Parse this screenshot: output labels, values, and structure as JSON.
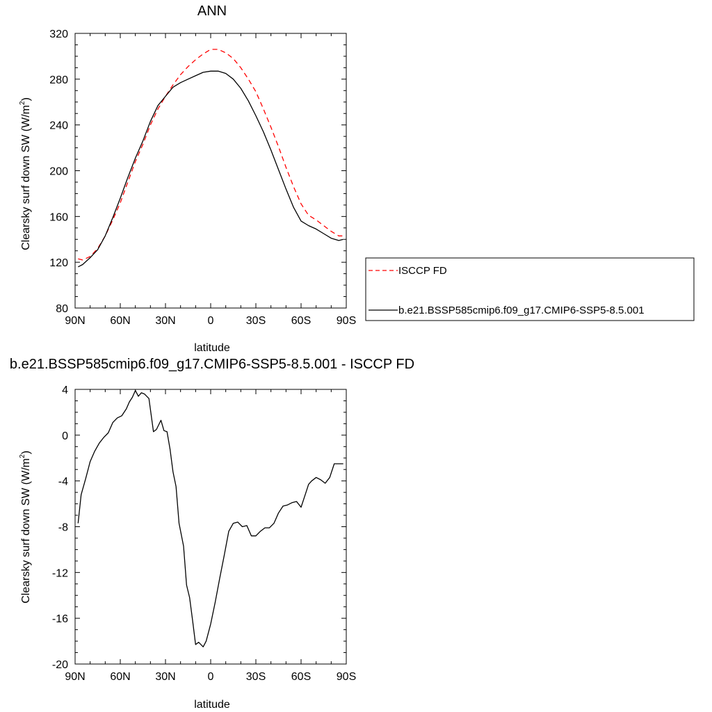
{
  "chart_data": [
    {
      "type": "line",
      "title": "ANN",
      "xlabel": "latitude",
      "ylabel": "Clearsky surf down SW (W/m",
      "ylabel_sup": "2",
      "ylabel_close": ")",
      "xlim": [
        -90,
        90
      ],
      "ylim": [
        80,
        320
      ],
      "x_ticks": [
        -90,
        -60,
        -30,
        0,
        30,
        60,
        90
      ],
      "x_tick_labels": [
        "90N",
        "60N",
        "30N",
        "0",
        "30S",
        "60S",
        "90S"
      ],
      "y_ticks": [
        80,
        120,
        160,
        200,
        240,
        280,
        320
      ],
      "y_tick_labels": [
        "80",
        "120",
        "160",
        "200",
        "240",
        "280",
        "320"
      ],
      "grid": false,
      "legend_position": "right",
      "series": [
        {
          "name": "ISCCP FD",
          "color": "#ff0000",
          "dash": "dashed",
          "x": [
            -88,
            -85,
            -80,
            -75,
            -70,
            -65,
            -60,
            -55,
            -50,
            -45,
            -40,
            -35,
            -30,
            -25,
            -20,
            -15,
            -10,
            -5,
            0,
            5,
            10,
            15,
            20,
            25,
            30,
            35,
            40,
            45,
            50,
            55,
            60,
            65,
            70,
            75,
            80,
            85,
            88
          ],
          "y": [
            123,
            122,
            125,
            132,
            143,
            157,
            172,
            190,
            208,
            223,
            240,
            254,
            265,
            275,
            284,
            291,
            297,
            302,
            306,
            306,
            303,
            298,
            290,
            280,
            269,
            254,
            238,
            221,
            203,
            186,
            171,
            161,
            157,
            152,
            147,
            143,
            143
          ]
        },
        {
          "name": "b.e21.BSSP585cmip6.f09_g17.CMIP6-SSP5-8.5.001",
          "color": "#000000",
          "dash": "solid",
          "x": [
            -88,
            -85,
            -80,
            -75,
            -70,
            -65,
            -60,
            -55,
            -50,
            -45,
            -40,
            -35,
            -30,
            -25,
            -20,
            -15,
            -10,
            -5,
            0,
            5,
            10,
            15,
            20,
            25,
            30,
            35,
            40,
            45,
            50,
            55,
            60,
            65,
            70,
            75,
            80,
            85,
            88
          ],
          "y": [
            116,
            118,
            124,
            131,
            143,
            159,
            176,
            194,
            211,
            226,
            243,
            257,
            265,
            273,
            277,
            280,
            283,
            286,
            287,
            287,
            285,
            280,
            272,
            261,
            248,
            234,
            218,
            201,
            184,
            168,
            156,
            152,
            149,
            145,
            141,
            139,
            140
          ]
        }
      ]
    },
    {
      "type": "line",
      "title": "b.e21.BSSP585cmip6.f09_g17.CMIP6-SSP5-8.5.001 - ISCCP FD",
      "xlabel": "latitude",
      "ylabel": "Clearsky surf down SW (W/m",
      "ylabel_sup": "2",
      "ylabel_close": ")",
      "xlim": [
        -90,
        90
      ],
      "ylim": [
        -20,
        4
      ],
      "x_ticks": [
        -90,
        -60,
        -30,
        0,
        30,
        60,
        90
      ],
      "x_tick_labels": [
        "90N",
        "60N",
        "30N",
        "0",
        "30S",
        "60S",
        "90S"
      ],
      "y_ticks": [
        -20,
        -16,
        -12,
        -8,
        -4,
        0,
        4
      ],
      "y_tick_labels": [
        "-20",
        "-16",
        "-12",
        "-8",
        "-4",
        "0",
        "4"
      ],
      "grid": false,
      "series": [
        {
          "color": "#000000",
          "dash": "solid",
          "x": [
            -88,
            -86,
            -83,
            -80,
            -77,
            -74,
            -71,
            -68,
            -65,
            -62,
            -59,
            -56,
            -54,
            -52,
            -50,
            -48,
            -46,
            -44,
            -41,
            -38,
            -36,
            -33,
            -31,
            -29,
            -27,
            -25,
            -23,
            -21,
            -18,
            -16,
            -14,
            -12,
            -10,
            -8,
            -5,
            -3,
            0,
            3,
            6,
            9,
            12,
            15,
            18,
            21,
            24,
            27,
            30,
            33,
            36,
            39,
            42,
            45,
            48,
            51,
            54,
            57,
            60,
            63,
            65,
            67,
            70,
            73,
            76,
            79,
            82,
            85,
            88
          ],
          "y": [
            -7.7,
            -5.2,
            -3.8,
            -2.3,
            -1.4,
            -0.7,
            -0.2,
            0.2,
            1.1,
            1.5,
            1.7,
            2.3,
            2.9,
            3.3,
            3.9,
            3.4,
            3.7,
            3.6,
            3.2,
            0.3,
            0.5,
            1.3,
            0.4,
            0.3,
            -1.2,
            -3.2,
            -4.5,
            -7.7,
            -9.7,
            -13.1,
            -14.2,
            -16.2,
            -18.3,
            -18.1,
            -18.5,
            -18.0,
            -16.5,
            -14.6,
            -12.5,
            -10.5,
            -8.4,
            -7.7,
            -7.6,
            -8.0,
            -7.9,
            -8.8,
            -8.8,
            -8.4,
            -8.1,
            -8.1,
            -7.7,
            -6.8,
            -6.2,
            -6.1,
            -5.9,
            -5.8,
            -6.3,
            -5.1,
            -4.3,
            -4.0,
            -3.7,
            -3.9,
            -4.2,
            -3.7,
            -2.5,
            -2.5,
            -2.5
          ]
        }
      ]
    }
  ]
}
